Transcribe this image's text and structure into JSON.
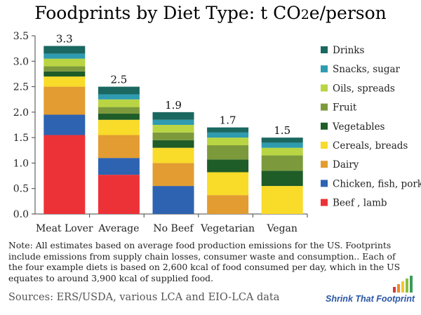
{
  "chart_data": {
    "type": "bar",
    "stacked": true,
    "title": "Foodprints by Diet Type: t CO2e/person",
    "categories": [
      "Meat Lover",
      "Average",
      "No Beef",
      "Vegetarian",
      "Vegan"
    ],
    "totals": [
      "3.3",
      "2.5",
      "1.9",
      "1.7",
      "1.5"
    ],
    "ylim": [
      0,
      3.5
    ],
    "yticks": [
      "0.0",
      "0.5",
      "1.0",
      "1.5",
      "2.0",
      "2.5",
      "3.0",
      "3.5"
    ],
    "grid": false,
    "legend_placement": "right",
    "series": [
      {
        "name": "Beef , lamb",
        "color": "#ed3237",
        "values": [
          1.55,
          0.77,
          0,
          0,
          0
        ]
      },
      {
        "name": "Chicken, fish, pork",
        "color": "#2e63b1",
        "values": [
          0.4,
          0.33,
          0.55,
          0,
          0
        ]
      },
      {
        "name": "Dairy",
        "color": "#e29c31",
        "values": [
          0.55,
          0.45,
          0.45,
          0.37,
          0
        ]
      },
      {
        "name": "Cereals, breads",
        "color": "#f9db2a",
        "values": [
          0.2,
          0.3,
          0.3,
          0.45,
          0.55
        ]
      },
      {
        "name": "Vegetables",
        "color": "#1e5c28",
        "values": [
          0.1,
          0.12,
          0.15,
          0.25,
          0.3
        ]
      },
      {
        "name": "Fruit",
        "color": "#7c9a3b",
        "values": [
          0.1,
          0.13,
          0.15,
          0.28,
          0.3
        ]
      },
      {
        "name": "Oils, spreads",
        "color": "#b9d543",
        "values": [
          0.15,
          0.15,
          0.15,
          0.15,
          0.15
        ]
      },
      {
        "name": "Snacks, sugar",
        "color": "#2e9bb0",
        "values": [
          0.1,
          0.1,
          0.1,
          0.1,
          0.1
        ]
      },
      {
        "name": "Drinks",
        "color": "#1b6860",
        "values": [
          0.15,
          0.15,
          0.15,
          0.1,
          0.1
        ]
      }
    ]
  },
  "note": "Note: All estimates based on average food production emissions for the US. Footprints include emissions from supply chain losses, consumer waste and consumption.. Each of the four example diets is based on 2,600 kcal of food consumed per day, which in the US equates to around 3,900 kcal of supplied food.",
  "sources": "Sources: ERS/USDA, various LCA and EIO-LCA data",
  "brand": {
    "name": "Shrink That Footprint",
    "colors": [
      "#d63a3a",
      "#f08a2a",
      "#f4c52e",
      "#8bbf3d",
      "#3a9b5a"
    ]
  }
}
